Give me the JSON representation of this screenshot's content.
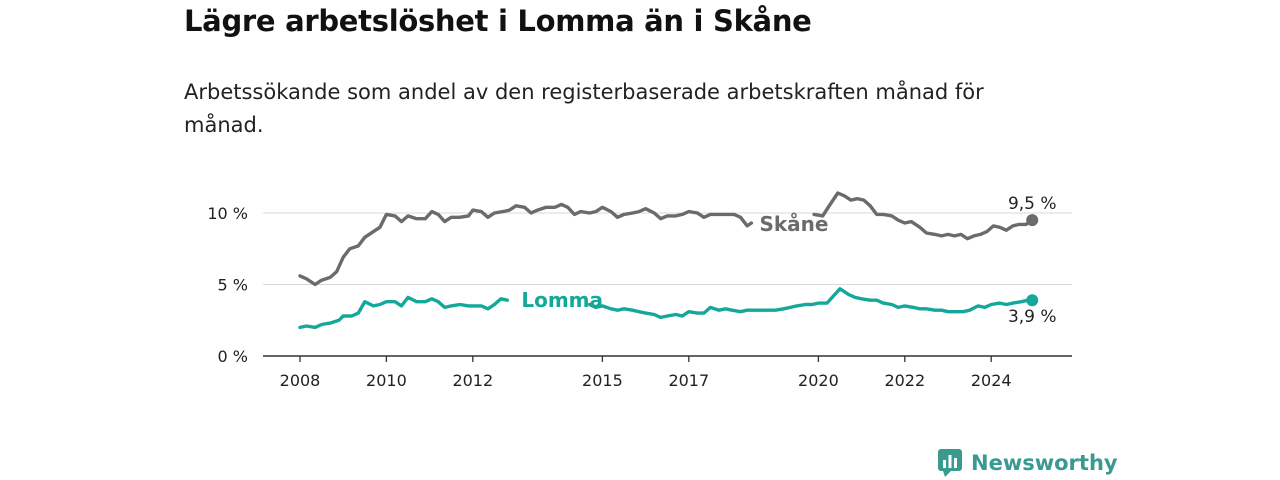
{
  "title": "Lägre arbetslöshet i Lomma än i Skåne",
  "subtitle": "Arbetssökande som andel av den registerbaserade arbetskraften månad för månad.",
  "brand": {
    "name": "Newsworthy",
    "icon": "newsworthy-logo-icon",
    "color": "#3a9a90"
  },
  "chart_data": {
    "type": "line",
    "y_ticks": [
      {
        "value": 0,
        "label": "0 %"
      },
      {
        "value": 5,
        "label": "5 %"
      },
      {
        "value": 10,
        "label": "10 %"
      }
    ],
    "x_ticks": [
      {
        "value": 2008,
        "label": "2008"
      },
      {
        "value": 2010,
        "label": "2010"
      },
      {
        "value": 2012,
        "label": "2012"
      },
      {
        "value": 2015,
        "label": "2015"
      },
      {
        "value": 2017,
        "label": "2017"
      },
      {
        "value": 2020,
        "label": "2020"
      },
      {
        "value": 2022,
        "label": "2022"
      },
      {
        "value": 2024,
        "label": "2024"
      }
    ],
    "xlim": [
      2007.6,
      2025.8
    ],
    "ylim": [
      0,
      10.8
    ],
    "grid": true,
    "series": [
      {
        "name": "Skåne",
        "color": "#6b6b6b",
        "end_label": "9,5 %",
        "label_near": 2018.8,
        "points": [
          [
            2008.0,
            5.6
          ],
          [
            2008.15,
            5.4
          ],
          [
            2008.35,
            5.0
          ],
          [
            2008.5,
            5.3
          ],
          [
            2008.7,
            5.5
          ],
          [
            2008.85,
            5.9
          ],
          [
            2009.0,
            6.9
          ],
          [
            2009.15,
            7.5
          ],
          [
            2009.35,
            7.7
          ],
          [
            2009.5,
            8.3
          ],
          [
            2009.7,
            8.7
          ],
          [
            2009.85,
            9.0
          ],
          [
            2010.0,
            9.9
          ],
          [
            2010.2,
            9.8
          ],
          [
            2010.35,
            9.4
          ],
          [
            2010.5,
            9.8
          ],
          [
            2010.7,
            9.6
          ],
          [
            2010.9,
            9.6
          ],
          [
            2011.05,
            10.1
          ],
          [
            2011.2,
            9.9
          ],
          [
            2011.35,
            9.4
          ],
          [
            2011.5,
            9.7
          ],
          [
            2011.7,
            9.7
          ],
          [
            2011.9,
            9.8
          ],
          [
            2012.0,
            10.2
          ],
          [
            2012.2,
            10.1
          ],
          [
            2012.35,
            9.7
          ],
          [
            2012.5,
            10.0
          ],
          [
            2012.7,
            10.1
          ],
          [
            2012.85,
            10.2
          ],
          [
            2013.0,
            10.5
          ],
          [
            2013.2,
            10.4
          ],
          [
            2013.35,
            10.0
          ],
          [
            2013.5,
            10.2
          ],
          [
            2013.7,
            10.4
          ],
          [
            2013.9,
            10.4
          ],
          [
            2014.05,
            10.6
          ],
          [
            2014.2,
            10.4
          ],
          [
            2014.35,
            9.9
          ],
          [
            2014.5,
            10.1
          ],
          [
            2014.7,
            10.0
          ],
          [
            2014.85,
            10.1
          ],
          [
            2015.0,
            10.4
          ],
          [
            2015.2,
            10.1
          ],
          [
            2015.35,
            9.7
          ],
          [
            2015.5,
            9.9
          ],
          [
            2015.7,
            10.0
          ],
          [
            2015.85,
            10.1
          ],
          [
            2016.0,
            10.3
          ],
          [
            2016.2,
            10.0
          ],
          [
            2016.35,
            9.6
          ],
          [
            2016.5,
            9.8
          ],
          [
            2016.7,
            9.8
          ],
          [
            2016.85,
            9.9
          ],
          [
            2017.0,
            10.1
          ],
          [
            2017.2,
            10.0
          ],
          [
            2017.35,
            9.7
          ],
          [
            2017.5,
            9.9
          ],
          [
            2017.7,
            9.9
          ],
          [
            2017.9,
            9.9
          ],
          [
            2018.05,
            9.9
          ],
          [
            2018.2,
            9.7
          ],
          [
            2018.35,
            9.1
          ],
          [
            2018.45,
            9.3
          ]
        ],
        "points_after_label": [
          [
            2019.9,
            9.9
          ],
          [
            2020.1,
            9.8
          ],
          [
            2020.25,
            10.5
          ],
          [
            2020.45,
            11.4
          ],
          [
            2020.6,
            11.2
          ],
          [
            2020.75,
            10.9
          ],
          [
            2020.9,
            11.0
          ],
          [
            2021.05,
            10.9
          ],
          [
            2021.2,
            10.5
          ],
          [
            2021.35,
            9.9
          ],
          [
            2021.5,
            9.9
          ],
          [
            2021.7,
            9.8
          ],
          [
            2021.85,
            9.5
          ],
          [
            2022.0,
            9.3
          ],
          [
            2022.15,
            9.4
          ],
          [
            2022.35,
            9.0
          ],
          [
            2022.5,
            8.6
          ],
          [
            2022.7,
            8.5
          ],
          [
            2022.85,
            8.4
          ],
          [
            2023.0,
            8.5
          ],
          [
            2023.15,
            8.4
          ],
          [
            2023.3,
            8.5
          ],
          [
            2023.45,
            8.2
          ],
          [
            2023.6,
            8.4
          ],
          [
            2023.75,
            8.5
          ],
          [
            2023.9,
            8.7
          ],
          [
            2024.05,
            9.1
          ],
          [
            2024.2,
            9.0
          ],
          [
            2024.35,
            8.8
          ],
          [
            2024.5,
            9.1
          ],
          [
            2024.65,
            9.2
          ],
          [
            2024.8,
            9.2
          ],
          [
            2024.95,
            9.5
          ]
        ]
      },
      {
        "name": "Lomma",
        "color": "#14a89a",
        "end_label": "3,9 %",
        "label_near": 2013.0,
        "points": [
          [
            2008.0,
            2.0
          ],
          [
            2008.15,
            2.1
          ],
          [
            2008.35,
            2.0
          ],
          [
            2008.5,
            2.2
          ],
          [
            2008.7,
            2.3
          ],
          [
            2008.9,
            2.5
          ],
          [
            2009.0,
            2.8
          ],
          [
            2009.2,
            2.8
          ],
          [
            2009.35,
            3.0
          ],
          [
            2009.5,
            3.8
          ],
          [
            2009.7,
            3.5
          ],
          [
            2009.85,
            3.6
          ],
          [
            2010.0,
            3.8
          ],
          [
            2010.2,
            3.8
          ],
          [
            2010.35,
            3.5
          ],
          [
            2010.5,
            4.1
          ],
          [
            2010.7,
            3.8
          ],
          [
            2010.9,
            3.8
          ],
          [
            2011.05,
            4.0
          ],
          [
            2011.2,
            3.8
          ],
          [
            2011.35,
            3.4
          ],
          [
            2011.5,
            3.5
          ],
          [
            2011.7,
            3.6
          ],
          [
            2011.9,
            3.5
          ],
          [
            2012.05,
            3.5
          ],
          [
            2012.2,
            3.5
          ],
          [
            2012.35,
            3.3
          ],
          [
            2012.5,
            3.6
          ],
          [
            2012.65,
            4.0
          ],
          [
            2012.8,
            3.9
          ]
        ],
        "points_after_label": [
          [
            2014.7,
            3.6
          ],
          [
            2014.85,
            3.4
          ],
          [
            2015.0,
            3.5
          ],
          [
            2015.2,
            3.3
          ],
          [
            2015.35,
            3.2
          ],
          [
            2015.5,
            3.3
          ],
          [
            2015.7,
            3.2
          ],
          [
            2015.85,
            3.1
          ],
          [
            2016.0,
            3.0
          ],
          [
            2016.2,
            2.9
          ],
          [
            2016.35,
            2.7
          ],
          [
            2016.5,
            2.8
          ],
          [
            2016.7,
            2.9
          ],
          [
            2016.85,
            2.8
          ],
          [
            2017.0,
            3.1
          ],
          [
            2017.2,
            3.0
          ],
          [
            2017.35,
            3.0
          ],
          [
            2017.5,
            3.4
          ],
          [
            2017.7,
            3.2
          ],
          [
            2017.85,
            3.3
          ],
          [
            2018.0,
            3.2
          ],
          [
            2018.2,
            3.1
          ],
          [
            2018.35,
            3.2
          ],
          [
            2018.5,
            3.2
          ],
          [
            2018.7,
            3.2
          ],
          [
            2018.85,
            3.2
          ],
          [
            2019.0,
            3.2
          ],
          [
            2019.2,
            3.3
          ],
          [
            2019.35,
            3.4
          ],
          [
            2019.5,
            3.5
          ],
          [
            2019.7,
            3.6
          ],
          [
            2019.85,
            3.6
          ],
          [
            2020.0,
            3.7
          ],
          [
            2020.2,
            3.7
          ],
          [
            2020.35,
            4.2
          ],
          [
            2020.5,
            4.7
          ],
          [
            2020.7,
            4.3
          ],
          [
            2020.85,
            4.1
          ],
          [
            2021.0,
            4.0
          ],
          [
            2021.2,
            3.9
          ],
          [
            2021.35,
            3.9
          ],
          [
            2021.5,
            3.7
          ],
          [
            2021.7,
            3.6
          ],
          [
            2021.85,
            3.4
          ],
          [
            2022.0,
            3.5
          ],
          [
            2022.2,
            3.4
          ],
          [
            2022.35,
            3.3
          ],
          [
            2022.5,
            3.3
          ],
          [
            2022.7,
            3.2
          ],
          [
            2022.85,
            3.2
          ],
          [
            2023.0,
            3.1
          ],
          [
            2023.2,
            3.1
          ],
          [
            2023.35,
            3.1
          ],
          [
            2023.5,
            3.2
          ],
          [
            2023.7,
            3.5
          ],
          [
            2023.85,
            3.4
          ],
          [
            2024.0,
            3.6
          ],
          [
            2024.2,
            3.7
          ],
          [
            2024.35,
            3.6
          ],
          [
            2024.5,
            3.7
          ],
          [
            2024.7,
            3.8
          ],
          [
            2024.85,
            3.9
          ],
          [
            2024.95,
            3.9
          ]
        ]
      }
    ]
  }
}
